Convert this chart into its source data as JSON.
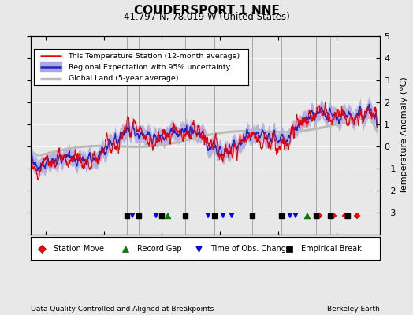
{
  "title": "COUDERSPORT 1 NNE",
  "subtitle": "41.797 N, 78.019 W (United States)",
  "ylabel": "Temperature Anomaly (°C)",
  "bottom_left": "Data Quality Controlled and Aligned at Breakpoints",
  "bottom_right": "Berkeley Earth",
  "ylim": [
    -4,
    5
  ],
  "xlim": [
    1895,
    2015
  ],
  "xticks": [
    1900,
    1920,
    1940,
    1960,
    1980,
    2000
  ],
  "yticks": [
    -3,
    -2,
    -1,
    0,
    1,
    2,
    3,
    4,
    5
  ],
  "station_color": "#EE0000",
  "regional_color": "#2222CC",
  "uncertainty_color": "#AAAADD",
  "global_color": "#BBBBBB",
  "bg_color": "#E8E8E8",
  "vline_color": "#888888",
  "station_moves": [
    1994,
    1999,
    2003,
    2007
  ],
  "record_gaps": [
    1942,
    1990
  ],
  "obs_changes": [
    1930,
    1938,
    1956,
    1961,
    1964,
    1984,
    1986
  ],
  "emp_breaks": [
    1928,
    1932,
    1940,
    1948,
    1958,
    1971,
    1981,
    1993,
    1998,
    2004
  ],
  "vlines": [
    1928,
    1932,
    1940,
    1948,
    1958,
    1971,
    1981,
    1993,
    1998,
    2004
  ],
  "start_year": 1895,
  "end_year": 2014,
  "seed": 137
}
